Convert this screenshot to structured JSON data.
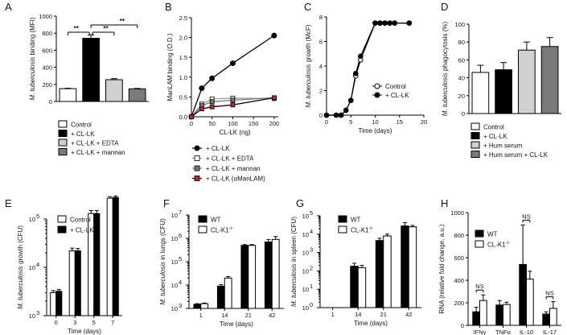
{
  "panel_letters": [
    "A",
    "B",
    "C",
    "D",
    "E",
    "F",
    "G",
    "H"
  ],
  "colors": {
    "black": "#000000",
    "white": "#ffffff",
    "light_gray": "#d0d0d0",
    "dark_gray": "#7a7a7a",
    "red": "#cc2222"
  },
  "chart_data": [
    {
      "panel": "A",
      "type": "bar",
      "ylabel_italic": "M. tuberculosis",
      "ylabel_rest": " binding (MFI)",
      "ylim": [
        0,
        1000
      ],
      "yticks": [
        "0",
        "200",
        "400",
        "600",
        "800",
        "1000"
      ],
      "categories": [
        "Control",
        "+ CL-LK",
        "+ CL-LK + EDTA",
        "+ CL-LK + mannan"
      ],
      "values": [
        150,
        740,
        255,
        148
      ],
      "errors": [
        5,
        40,
        12,
        5
      ],
      "fills": [
        "#ffffff",
        "#000000",
        "#d0d0d0",
        "#7a7a7a"
      ],
      "significance": [
        "**",
        "**",
        "**"
      ]
    },
    {
      "panel": "B",
      "type": "line",
      "ylabel": "ManLAM binding (O.D.)",
      "xlabel": "CL-LK (ng)",
      "xlim": [
        0,
        210
      ],
      "ylim": [
        0,
        2.5
      ],
      "xticks": [
        "0",
        "50",
        "100",
        "150",
        "200"
      ],
      "yticks": [
        "0.0",
        "0.5",
        "1.0",
        "1.5",
        "2.0",
        "2.5"
      ],
      "x": [
        0,
        25,
        50,
        100,
        200
      ],
      "series": [
        {
          "name": "+ CL-LK",
          "values": [
            0.0,
            0.72,
            0.97,
            1.35,
            2.05
          ],
          "marker": "#000000",
          "line": "#000000"
        },
        {
          "name": "+ CL-LK + EDTA",
          "values": [
            0.0,
            0.32,
            0.45,
            0.47,
            0.46
          ],
          "marker": "#ffffff",
          "line": "#999999"
        },
        {
          "name": "+ CL-LK + mannan",
          "values": [
            0.0,
            0.28,
            0.38,
            0.42,
            0.48
          ],
          "marker": "#777777",
          "line": "#777777"
        },
        {
          "name": "+ CL-LK (αManLAM)",
          "values": [
            0.0,
            0.2,
            0.25,
            0.3,
            0.48
          ],
          "marker": "#cc2222",
          "line": "#000000"
        }
      ]
    },
    {
      "panel": "C",
      "type": "line",
      "ylabel_italic": "M. tuberculosis",
      "ylabel_rest": " growth (McF)",
      "xlabel": "Time (days)",
      "xlim": [
        0,
        20
      ],
      "ylim": [
        0,
        8
      ],
      "xticks": [
        "0",
        "5",
        "10",
        "15",
        "20"
      ],
      "yticks": [
        "0",
        "2",
        "4",
        "6",
        "8"
      ],
      "series": [
        {
          "name": "Control",
          "x": [
            0,
            2,
            3,
            4,
            5,
            6,
            7,
            10,
            11,
            12,
            13,
            14,
            17
          ],
          "values": [
            0,
            0,
            0,
            0.4,
            1.2,
            3.2,
            4.5,
            7.5,
            7.5,
            7.5,
            7.5,
            7.5,
            7.5
          ],
          "marker": "#ffffff"
        },
        {
          "name": "+ CL-LK",
          "x": [
            0,
            2,
            3,
            4,
            5,
            6,
            7,
            10,
            11,
            12,
            13,
            14,
            17
          ],
          "values": [
            0,
            0,
            0,
            0.4,
            1.2,
            3.4,
            4.8,
            7.5,
            7.5,
            7.5,
            7.5,
            7.5,
            7.5
          ],
          "marker": "#000000"
        }
      ]
    },
    {
      "panel": "D",
      "type": "bar",
      "ylabel_italic": "M. tuberculosis",
      "ylabel_rest": " phagocytosis (%)",
      "ylim": [
        0,
        100
      ],
      "yticks": [
        "0",
        "20",
        "40",
        "60",
        "80",
        "100"
      ],
      "categories": [
        "Control",
        "+ CL-LK",
        "+ Hum serum",
        "+ Hum serum + CL-LK"
      ],
      "values": [
        46,
        49,
        71,
        75
      ],
      "errors": [
        8,
        8,
        9,
        10
      ],
      "fills": [
        "#ffffff",
        "#000000",
        "#d0d0d0",
        "#7a7a7a"
      ]
    },
    {
      "panel": "E",
      "type": "bar",
      "scale": "log",
      "ylabel_italic": "M. tuberculosis",
      "ylabel_rest": " growth (CFU)",
      "xlabel": "Time (days)",
      "ylim_exp": [
        3,
        5
      ],
      "ytick_base": "10",
      "ytick_exps": [
        "3",
        "4",
        "5"
      ],
      "categories": [
        "0",
        "3",
        "5",
        "7"
      ],
      "series": [
        {
          "name": "Control",
          "values": [
            3000,
            22000,
            130000,
            270000
          ],
          "errors": [
            300,
            3000,
            20000,
            20000
          ],
          "fill": "#ffffff"
        },
        {
          "name": "+ CL-LK",
          "values": [
            3200,
            22000,
            130000,
            280000
          ],
          "errors": [
            300,
            2500,
            20000,
            20000
          ],
          "fill": "#000000"
        }
      ]
    },
    {
      "panel": "F",
      "type": "bar",
      "scale": "log",
      "ylabel_italic": "M. tuberculosis",
      "ylabel_rest": " in lungs (CFU)",
      "xlabel": "Time (days)",
      "ylim_exp": [
        3,
        7
      ],
      "ytick_base": "10",
      "ytick_exps": [
        "3",
        "4",
        "5",
        "6",
        "7"
      ],
      "categories": [
        "1",
        "14",
        "21",
        "42"
      ],
      "series": [
        {
          "name": "WT",
          "values": [
            1500,
            9000,
            500000,
            700000
          ],
          "errors": [
            100,
            1500,
            40000,
            200000
          ],
          "fill": "#000000"
        },
        {
          "name": "CL-K1",
          "sup": "-/-",
          "values": [
            1600,
            20000,
            500000,
            900000
          ],
          "errors": [
            100,
            3000,
            40000,
            300000
          ],
          "fill": "#ffffff"
        }
      ]
    },
    {
      "panel": "G",
      "type": "bar",
      "scale": "log",
      "ylabel_italic": "M. tuberculosis",
      "ylabel_rest": " in spleen (CFU)",
      "xlabel": "Time (days)",
      "ylim_exp": [
        0,
        5
      ],
      "ytick_base": "10",
      "ytick_exps": [
        "0",
        "1",
        "2",
        "3",
        "4",
        "5"
      ],
      "categories": [
        "1",
        "14",
        "21",
        "42"
      ],
      "series": [
        {
          "name": "WT",
          "values": [
            0,
            180,
            4500,
            28000
          ],
          "errors": [
            0,
            80,
            1500,
            15000
          ],
          "fill": "#000000"
        },
        {
          "name": "CL-K1",
          "sup": "-/-",
          "values": [
            0,
            150,
            8000,
            25000
          ],
          "errors": [
            0,
            50,
            2000,
            5000
          ],
          "fill": "#ffffff"
        }
      ]
    },
    {
      "panel": "H",
      "type": "bar",
      "ylabel": "RNA (relative fold change, a.u.)",
      "ylim": [
        0,
        1000
      ],
      "yticks": [
        "0",
        "200",
        "400",
        "600",
        "800",
        "1000"
      ],
      "categories": [
        "IFNγ",
        "TNFα",
        "IL-10",
        "IL-17"
      ],
      "series": [
        {
          "name": "WT",
          "values": [
            120,
            180,
            540,
            100
          ],
          "errors": [
            40,
            40,
            350,
            20
          ],
          "fill": "#000000"
        },
        {
          "name": "CL-K1",
          "sup": "-/-",
          "values": [
            220,
            185,
            410,
            150
          ],
          "errors": [
            50,
            20,
            70,
            60
          ],
          "fill": "#ffffff"
        }
      ],
      "significance": [
        "NS",
        "NS",
        "NS"
      ]
    }
  ]
}
